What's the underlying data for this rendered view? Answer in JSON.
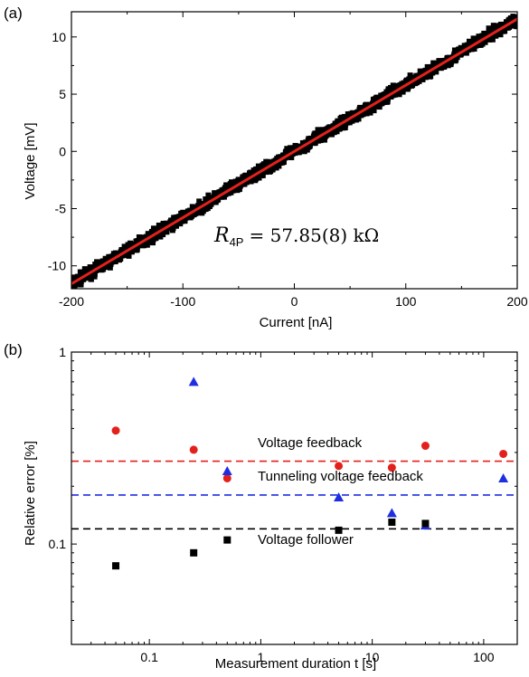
{
  "chart_data": [
    {
      "panel_label": "(a)",
      "type": "scatter",
      "xlabel": "Current [nA]",
      "ylabel": "Voltage [mV]",
      "xlim": [
        -200,
        200
      ],
      "ylim": [
        -12,
        12.2
      ],
      "xticks": [
        -200,
        -100,
        0,
        100,
        200
      ],
      "yticks": [
        -10,
        -5,
        0,
        5,
        10
      ],
      "xtick_labels": [
        "-200",
        "-100",
        "0",
        "100",
        "200"
      ],
      "ytick_labels": [
        "-10",
        "-5",
        "0",
        "5",
        "10"
      ],
      "annotation": {
        "symbol": "R",
        "subscript": "4P",
        "text": "= 57.85(8) kΩ"
      },
      "series": [
        {
          "marker": "square",
          "color": "#000000",
          "x_range": [
            -200,
            200
          ],
          "slope_mV_per_nA": 0.05785,
          "intercept_mV": 0.0,
          "noise_mV": 0.35
        },
        {
          "type": "line",
          "color": "#e3211c",
          "x": [
            -200,
            200
          ],
          "y": [
            -11.57,
            11.57
          ]
        }
      ]
    },
    {
      "panel_label": "(b)",
      "type": "scatter",
      "xlabel": "Measurement duration t [s]",
      "ylabel": "Relative error [%]",
      "xscale": "log",
      "yscale": "log",
      "xlim": [
        0.02,
        200
      ],
      "ylim": [
        0.03,
        1
      ],
      "xticks": [
        0.1,
        1,
        10,
        100
      ],
      "xtick_labels": [
        "0.1",
        "1",
        "10",
        "100"
      ],
      "yticks": [
        0.1,
        1
      ],
      "ytick_labels": [
        "0.1",
        "1"
      ],
      "series": [
        {
          "label": "Voltage feedback",
          "marker": "circle",
          "color": "#e3211c",
          "x": [
            0.05,
            0.25,
            0.5,
            5,
            15,
            30,
            150
          ],
          "y": [
            0.39,
            0.31,
            0.22,
            0.255,
            0.25,
            0.325,
            0.295
          ],
          "hline": 0.27
        },
        {
          "label": "Tunneling voltage feedback",
          "marker": "triangle",
          "color": "#1f2ee0",
          "x": [
            0.25,
            0.5,
            5,
            15,
            30,
            150
          ],
          "y": [
            0.7,
            0.24,
            0.175,
            0.145,
            0.125,
            0.22
          ],
          "hline": 0.18
        },
        {
          "label": "Voltage follower",
          "marker": "square",
          "color": "#000000",
          "x": [
            0.05,
            0.25,
            0.5,
            5,
            15,
            30
          ],
          "y": [
            0.077,
            0.09,
            0.105,
            0.118,
            0.13,
            0.128
          ],
          "hline": 0.12
        }
      ]
    }
  ]
}
